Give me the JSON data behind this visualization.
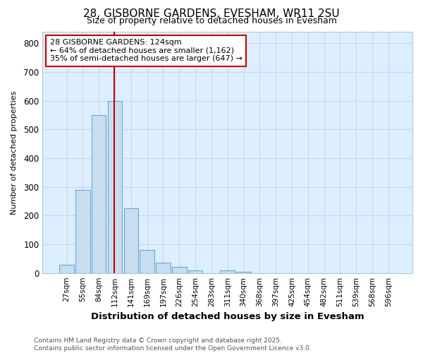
{
  "title": "28, GISBORNE GARDENS, EVESHAM, WR11 2SU",
  "subtitle": "Size of property relative to detached houses in Evesham",
  "xlabel": "Distribution of detached houses by size in Evesham",
  "ylabel": "Number of detached properties",
  "categories": [
    "27sqm",
    "55sqm",
    "84sqm",
    "112sqm",
    "141sqm",
    "169sqm",
    "197sqm",
    "226sqm",
    "254sqm",
    "283sqm",
    "311sqm",
    "340sqm",
    "368sqm",
    "397sqm",
    "425sqm",
    "454sqm",
    "482sqm",
    "511sqm",
    "539sqm",
    "568sqm",
    "596sqm"
  ],
  "values": [
    28,
    290,
    550,
    600,
    225,
    80,
    35,
    22,
    8,
    0,
    8,
    5,
    0,
    0,
    0,
    0,
    0,
    0,
    0,
    0,
    0
  ],
  "bar_color": "#c8ddf0",
  "bar_edge_color": "#6aaad4",
  "grid_color": "#c8d8e8",
  "plot_bg_color": "#ddeeff",
  "fig_bg_color": "#ffffff",
  "vline_x": 3.0,
  "vline_color": "#cc0000",
  "annotation_text": "28 GISBORNE GARDENS: 124sqm\n← 64% of detached houses are smaller (1,162)\n35% of semi-detached houses are larger (647) →",
  "annotation_box_color": "#ffffff",
  "annotation_box_edge": "#cc0000",
  "ylim": [
    0,
    840
  ],
  "yticks": [
    0,
    100,
    200,
    300,
    400,
    500,
    600,
    700,
    800
  ],
  "footer_line1": "Contains HM Land Registry data © Crown copyright and database right 2025.",
  "footer_line2": "Contains public sector information licensed under the Open Government Licence v3.0."
}
